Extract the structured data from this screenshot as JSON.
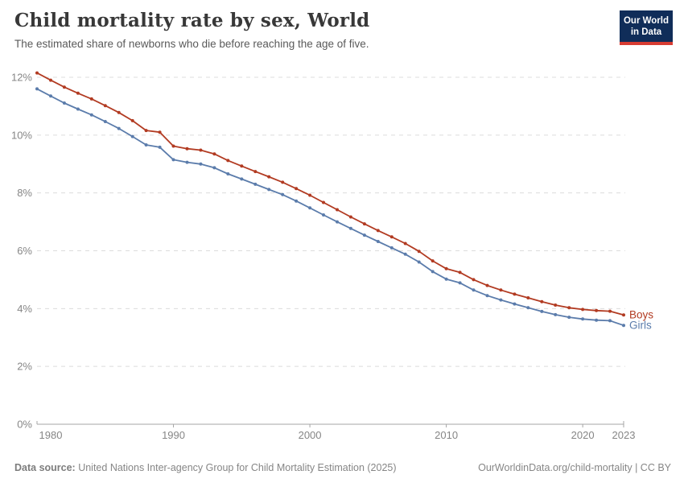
{
  "header": {
    "title": "Child mortality rate by sex, World",
    "subtitle": "The estimated share of newborns who die before reaching the age of five."
  },
  "logo": {
    "line1": "Our World",
    "line2": "in Data"
  },
  "chart_data": {
    "type": "line",
    "title": "Child mortality rate by sex, World",
    "xlabel": "",
    "ylabel": "",
    "ylim": [
      0,
      12
    ],
    "xlim": [
      1980,
      2023
    ],
    "grid": "horizontal-dashed",
    "legend_position": "end-of-line",
    "y_ticks": [
      {
        "value": 0,
        "label": "0%"
      },
      {
        "value": 2,
        "label": "2%"
      },
      {
        "value": 4,
        "label": "4%"
      },
      {
        "value": 6,
        "label": "6%"
      },
      {
        "value": 8,
        "label": "8%"
      },
      {
        "value": 10,
        "label": "10%"
      },
      {
        "value": 12,
        "label": "12%"
      }
    ],
    "x_ticks": [
      {
        "value": 1980,
        "label": "1980"
      },
      {
        "value": 1990,
        "label": "1990"
      },
      {
        "value": 2000,
        "label": "2000"
      },
      {
        "value": 2010,
        "label": "2010"
      },
      {
        "value": 2020,
        "label": "2020"
      },
      {
        "value": 2023,
        "label": "2023"
      }
    ],
    "x": [
      1980,
      1981,
      1982,
      1983,
      1984,
      1985,
      1986,
      1987,
      1988,
      1989,
      1990,
      1991,
      1992,
      1993,
      1994,
      1995,
      1996,
      1997,
      1998,
      1999,
      2000,
      2001,
      2002,
      2003,
      2004,
      2005,
      2006,
      2007,
      2008,
      2009,
      2010,
      2011,
      2012,
      2013,
      2014,
      2015,
      2016,
      2017,
      2018,
      2019,
      2020,
      2021,
      2022,
      2023
    ],
    "series": [
      {
        "name": "Boys",
        "color": "#b23b22",
        "values": [
          12.15,
          11.9,
          11.66,
          11.45,
          11.25,
          11.02,
          10.78,
          10.5,
          10.16,
          10.1,
          9.62,
          9.53,
          9.48,
          9.35,
          9.12,
          8.93,
          8.74,
          8.56,
          8.37,
          8.15,
          7.92,
          7.67,
          7.42,
          7.17,
          6.93,
          6.7,
          6.48,
          6.25,
          5.98,
          5.65,
          5.38,
          5.25,
          5.0,
          4.8,
          4.64,
          4.5,
          4.37,
          4.24,
          4.12,
          4.03,
          3.97,
          3.93,
          3.91,
          3.78
        ]
      },
      {
        "name": "Girls",
        "color": "#5b7cab",
        "values": [
          11.6,
          11.35,
          11.11,
          10.9,
          10.7,
          10.47,
          10.23,
          9.95,
          9.66,
          9.58,
          9.15,
          9.06,
          9.0,
          8.87,
          8.66,
          8.48,
          8.3,
          8.12,
          7.94,
          7.72,
          7.48,
          7.24,
          7.0,
          6.77,
          6.54,
          6.32,
          6.1,
          5.88,
          5.61,
          5.28,
          5.02,
          4.89,
          4.64,
          4.45,
          4.3,
          4.16,
          4.03,
          3.9,
          3.79,
          3.7,
          3.64,
          3.6,
          3.58,
          3.42
        ]
      }
    ]
  },
  "footer": {
    "source_label": "Data source:",
    "source_text": " United Nations Inter-agency Group for Child Mortality Estimation (2025)",
    "link": "OurWorldinData.org/child-mortality",
    "separator": " | ",
    "license": "CC BY"
  },
  "colors": {
    "grid": "#dcdcdc",
    "axis": "#a5a5a5",
    "tick_label": "#868686",
    "title": "#383838",
    "subtitle": "#5a5a5a",
    "footer": "#868686",
    "logo_bg": "#102d59",
    "logo_accent": "#d73c32"
  }
}
